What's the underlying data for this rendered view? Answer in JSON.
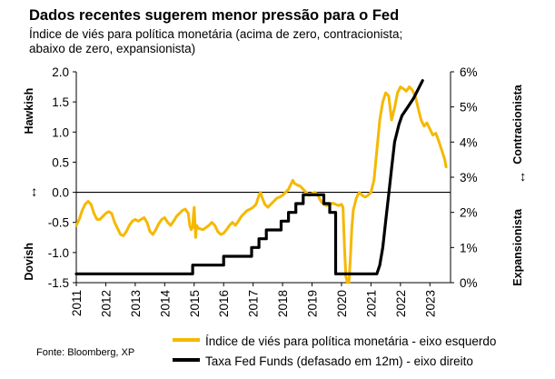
{
  "header": {
    "title": "Dados recentes sugerem menor pressão para o Fed",
    "subtitle": "Índice de viés para política monetária (acima de zero, contracionista; abaixo de zero, expansionista)"
  },
  "footer": {
    "source": "Fonte: Bloomberg, XP"
  },
  "colors": {
    "index_series": "#F5B800",
    "fed_funds_series": "#000000",
    "axis": "#000000",
    "zero_line": "#000000"
  },
  "chart_data": {
    "type": "line",
    "title": "Dados recentes sugerem menor pressão para o Fed",
    "subtitle": "Índice de viés para política monetária (acima de zero, contracionista; abaixo de zero, expansionista)",
    "x_ticks": [
      "2011",
      "2012",
      "2013",
      "2014",
      "2015",
      "2016",
      "2017",
      "2018",
      "2019",
      "2020",
      "2021",
      "2022",
      "2023"
    ],
    "xlim": [
      2011.0,
      2023.7
    ],
    "y_left": {
      "ticks": [
        "-1.5",
        "-1.0",
        "-0.5",
        "0.0",
        "0.5",
        "1.0",
        "1.5",
        "2.0"
      ],
      "lim": [
        -1.5,
        2.0
      ]
    },
    "y_right": {
      "ticks": [
        "0%",
        "1%",
        "2%",
        "3%",
        "4%",
        "5%",
        "6%"
      ],
      "lim": [
        0,
        6
      ]
    },
    "left_axis_labels": {
      "top": "Hawkish",
      "bottom": "Dovish",
      "arrow": "↔"
    },
    "right_axis_labels": {
      "top": "Contracionista",
      "bottom": "Expansionista",
      "arrow": "↔"
    },
    "series": [
      {
        "name": "Índice de viés para política monetária - eixo esquerdo",
        "axis": "left",
        "color": "#F5B800",
        "points": [
          [
            2011.0,
            -0.55
          ],
          [
            2011.1,
            -0.45
          ],
          [
            2011.2,
            -0.3
          ],
          [
            2011.3,
            -0.2
          ],
          [
            2011.4,
            -0.15
          ],
          [
            2011.5,
            -0.2
          ],
          [
            2011.6,
            -0.35
          ],
          [
            2011.7,
            -0.45
          ],
          [
            2011.8,
            -0.45
          ],
          [
            2011.9,
            -0.4
          ],
          [
            2012.0,
            -0.35
          ],
          [
            2012.1,
            -0.32
          ],
          [
            2012.2,
            -0.35
          ],
          [
            2012.3,
            -0.5
          ],
          [
            2012.4,
            -0.6
          ],
          [
            2012.5,
            -0.7
          ],
          [
            2012.6,
            -0.72
          ],
          [
            2012.7,
            -0.65
          ],
          [
            2012.8,
            -0.55
          ],
          [
            2012.9,
            -0.48
          ],
          [
            2013.0,
            -0.45
          ],
          [
            2013.1,
            -0.48
          ],
          [
            2013.2,
            -0.45
          ],
          [
            2013.3,
            -0.42
          ],
          [
            2013.4,
            -0.5
          ],
          [
            2013.5,
            -0.65
          ],
          [
            2013.6,
            -0.7
          ],
          [
            2013.7,
            -0.62
          ],
          [
            2013.8,
            -0.52
          ],
          [
            2013.9,
            -0.45
          ],
          [
            2014.0,
            -0.42
          ],
          [
            2014.1,
            -0.5
          ],
          [
            2014.2,
            -0.55
          ],
          [
            2014.3,
            -0.48
          ],
          [
            2014.4,
            -0.4
          ],
          [
            2014.5,
            -0.35
          ],
          [
            2014.6,
            -0.3
          ],
          [
            2014.7,
            -0.28
          ],
          [
            2014.8,
            -0.35
          ],
          [
            2014.85,
            -0.55
          ],
          [
            2014.9,
            -0.62
          ],
          [
            2014.95,
            -0.58
          ],
          [
            2014.98,
            -0.35
          ],
          [
            2015.0,
            -0.25
          ],
          [
            2015.05,
            -0.75
          ],
          [
            2015.08,
            -0.55
          ],
          [
            2015.15,
            -0.6
          ],
          [
            2015.3,
            -0.62
          ],
          [
            2015.5,
            -0.55
          ],
          [
            2015.6,
            -0.5
          ],
          [
            2015.7,
            -0.55
          ],
          [
            2015.8,
            -0.65
          ],
          [
            2015.9,
            -0.7
          ],
          [
            2016.0,
            -0.68
          ],
          [
            2016.1,
            -0.62
          ],
          [
            2016.2,
            -0.55
          ],
          [
            2016.3,
            -0.5
          ],
          [
            2016.4,
            -0.55
          ],
          [
            2016.5,
            -0.48
          ],
          [
            2016.6,
            -0.4
          ],
          [
            2016.7,
            -0.35
          ],
          [
            2016.8,
            -0.3
          ],
          [
            2016.9,
            -0.28
          ],
          [
            2017.0,
            -0.25
          ],
          [
            2017.1,
            -0.2
          ],
          [
            2017.2,
            -0.05
          ],
          [
            2017.25,
            0.0
          ],
          [
            2017.3,
            -0.08
          ],
          [
            2017.4,
            -0.2
          ],
          [
            2017.5,
            -0.25
          ],
          [
            2017.6,
            -0.2
          ],
          [
            2017.7,
            -0.15
          ],
          [
            2017.8,
            -0.1
          ],
          [
            2017.9,
            -0.08
          ],
          [
            2018.0,
            -0.05
          ],
          [
            2018.1,
            0.0
          ],
          [
            2018.2,
            0.05
          ],
          [
            2018.25,
            0.1
          ],
          [
            2018.35,
            0.2
          ],
          [
            2018.4,
            0.15
          ],
          [
            2018.5,
            0.12
          ],
          [
            2018.6,
            0.1
          ],
          [
            2018.7,
            0.05
          ],
          [
            2018.8,
            0.0
          ],
          [
            2018.9,
            -0.05
          ],
          [
            2019.0,
            -0.02
          ],
          [
            2019.1,
            0.0
          ],
          [
            2019.2,
            -0.05
          ],
          [
            2019.3,
            -0.15
          ],
          [
            2019.4,
            -0.2
          ],
          [
            2019.5,
            -0.22
          ],
          [
            2019.6,
            -0.2
          ],
          [
            2019.7,
            -0.18
          ],
          [
            2019.8,
            -0.2
          ],
          [
            2019.9,
            -0.22
          ],
          [
            2020.0,
            -0.2
          ],
          [
            2020.05,
            -0.25
          ],
          [
            2020.1,
            -0.9
          ],
          [
            2020.15,
            -1.4
          ],
          [
            2020.2,
            -1.5
          ],
          [
            2020.25,
            -1.5
          ],
          [
            2020.3,
            -1.1
          ],
          [
            2020.35,
            -0.6
          ],
          [
            2020.4,
            -0.3
          ],
          [
            2020.5,
            -0.1
          ],
          [
            2020.6,
            0.0
          ],
          [
            2020.7,
            -0.05
          ],
          [
            2020.8,
            -0.08
          ],
          [
            2020.9,
            -0.05
          ],
          [
            2021.0,
            0.0
          ],
          [
            2021.1,
            0.2
          ],
          [
            2021.2,
            0.7
          ],
          [
            2021.3,
            1.2
          ],
          [
            2021.4,
            1.5
          ],
          [
            2021.5,
            1.65
          ],
          [
            2021.6,
            1.6
          ],
          [
            2021.7,
            1.2
          ],
          [
            2021.8,
            1.4
          ],
          [
            2021.9,
            1.65
          ],
          [
            2022.0,
            1.75
          ],
          [
            2022.1,
            1.72
          ],
          [
            2022.2,
            1.68
          ],
          [
            2022.3,
            1.75
          ],
          [
            2022.4,
            1.7
          ],
          [
            2022.5,
            1.6
          ],
          [
            2022.6,
            1.4
          ],
          [
            2022.7,
            1.2
          ],
          [
            2022.8,
            1.1
          ],
          [
            2022.9,
            1.15
          ],
          [
            2023.0,
            1.05
          ],
          [
            2023.1,
            0.95
          ],
          [
            2023.2,
            0.98
          ],
          [
            2023.3,
            0.85
          ],
          [
            2023.4,
            0.7
          ],
          [
            2023.5,
            0.55
          ],
          [
            2023.55,
            0.42
          ]
        ]
      },
      {
        "name": "Taxa Fed Funds (defasado em 12m) - eixo direito",
        "axis": "right",
        "color": "#000000",
        "points": [
          [
            2011.0,
            0.25
          ],
          [
            2014.95,
            0.25
          ],
          [
            2014.95,
            0.5
          ],
          [
            2016.0,
            0.5
          ],
          [
            2016.0,
            0.75
          ],
          [
            2016.95,
            0.75
          ],
          [
            2016.95,
            1.0
          ],
          [
            2017.2,
            1.0
          ],
          [
            2017.2,
            1.25
          ],
          [
            2017.45,
            1.25
          ],
          [
            2017.45,
            1.5
          ],
          [
            2017.95,
            1.5
          ],
          [
            2017.95,
            1.75
          ],
          [
            2018.2,
            1.75
          ],
          [
            2018.2,
            2.0
          ],
          [
            2018.45,
            2.0
          ],
          [
            2018.45,
            2.25
          ],
          [
            2018.7,
            2.25
          ],
          [
            2018.7,
            2.5
          ],
          [
            2019.4,
            2.5
          ],
          [
            2019.4,
            2.25
          ],
          [
            2019.6,
            2.25
          ],
          [
            2019.6,
            2.0
          ],
          [
            2019.8,
            2.0
          ],
          [
            2019.8,
            0.25
          ],
          [
            2021.2,
            0.25
          ],
          [
            2021.3,
            0.5
          ],
          [
            2021.4,
            1.0
          ],
          [
            2021.5,
            1.75
          ],
          [
            2021.6,
            2.5
          ],
          [
            2021.7,
            3.25
          ],
          [
            2021.8,
            4.0
          ],
          [
            2021.95,
            4.5
          ],
          [
            2022.05,
            4.75
          ],
          [
            2022.25,
            5.0
          ],
          [
            2022.45,
            5.25
          ],
          [
            2022.6,
            5.5
          ],
          [
            2022.75,
            5.75
          ]
        ]
      }
    ]
  }
}
